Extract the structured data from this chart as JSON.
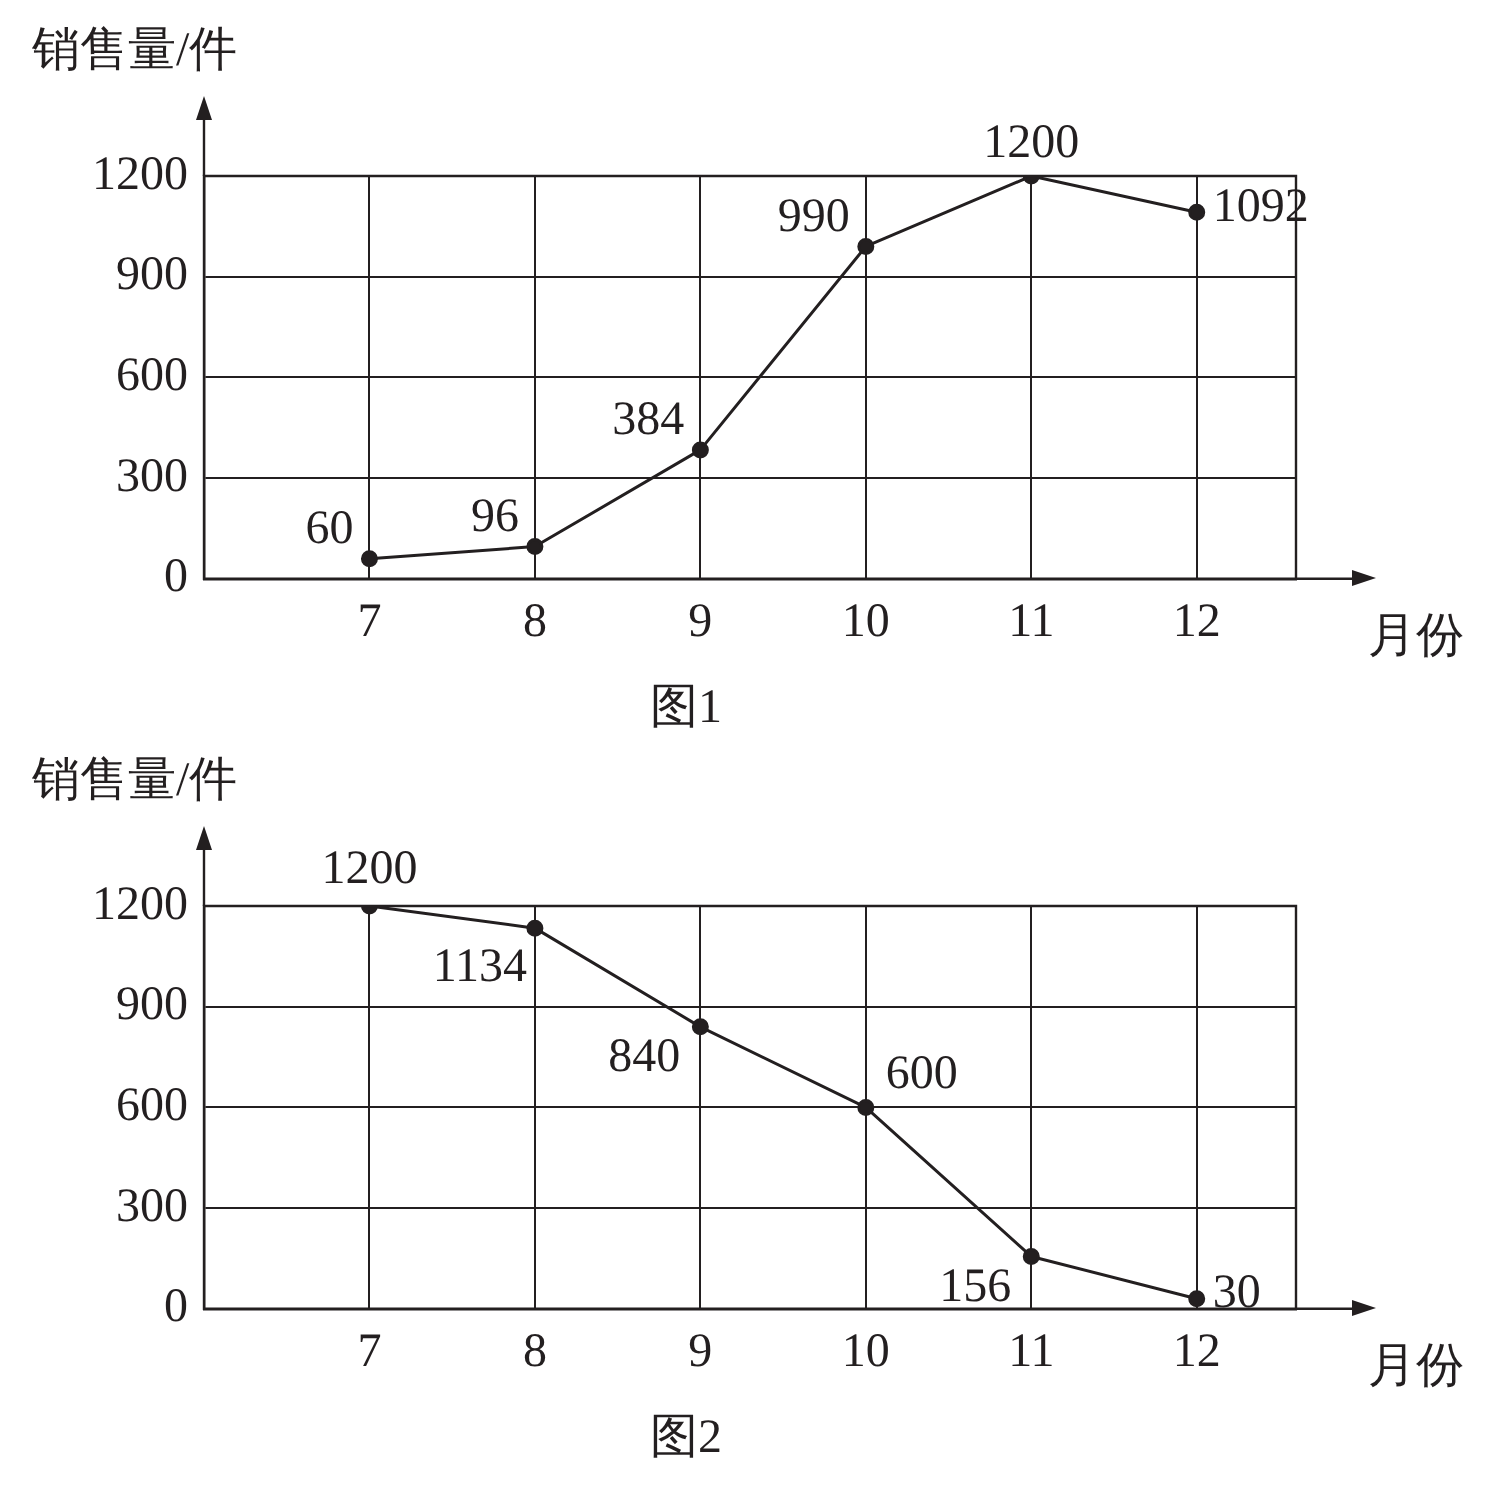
{
  "chart_data": [
    {
      "type": "line",
      "title": "图1",
      "xlabel": "月份",
      "ylabel": "销售量/件",
      "x": [
        7,
        8,
        9,
        10,
        11,
        12
      ],
      "values": [
        60,
        96,
        384,
        990,
        1200,
        1092
      ],
      "color": "#231f20",
      "xlim": [
        6,
        12.6
      ],
      "xticks": [
        7,
        8,
        9,
        10,
        11,
        12
      ],
      "ylim": [
        0,
        1200
      ],
      "yticks": [
        0,
        300,
        600,
        900,
        1200
      ],
      "grid": true,
      "marker": "circle",
      "data_labels": true
    },
    {
      "type": "line",
      "title": "图2",
      "xlabel": "月份",
      "ylabel": "销售量/件",
      "x": [
        7,
        8,
        9,
        10,
        11,
        12
      ],
      "values": [
        1200,
        1134,
        840,
        600,
        156,
        30
      ],
      "color": "#231f20",
      "xlim": [
        6,
        12.6
      ],
      "xticks": [
        7,
        8,
        9,
        10,
        11,
        12
      ],
      "ylim": [
        0,
        1200
      ],
      "yticks": [
        0,
        300,
        600,
        900,
        1200
      ],
      "grid": true,
      "marker": "circle",
      "data_labels": true
    }
  ]
}
